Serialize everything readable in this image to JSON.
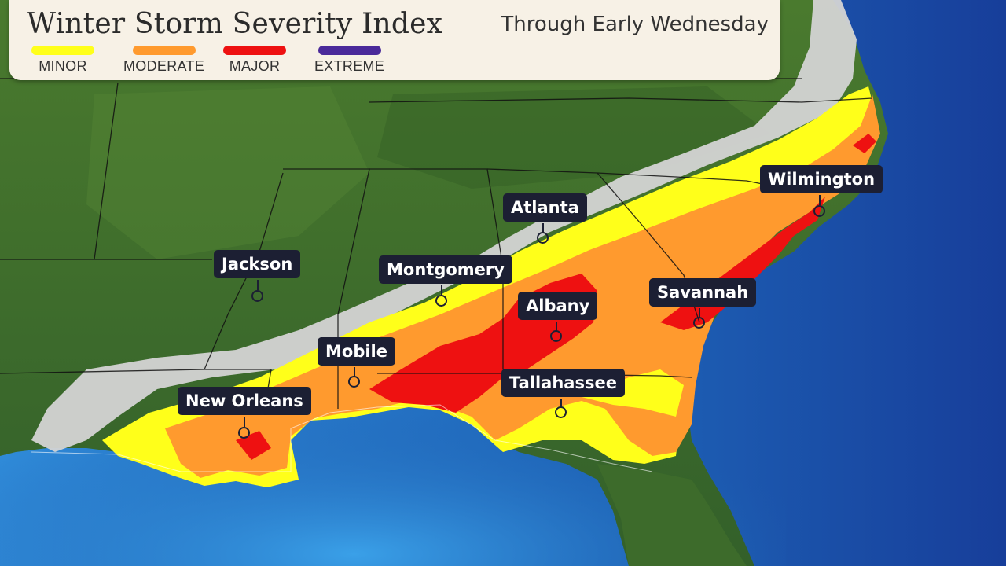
{
  "header": {
    "title": "Winter Storm Severity Index",
    "subtitle": "Through Early Wednesday"
  },
  "legend": [
    {
      "label": "MINOR",
      "color": "#ffff1a"
    },
    {
      "label": "MODERATE",
      "color": "#ff9a2e"
    },
    {
      "label": "MAJOR",
      "color": "#ee1111"
    },
    {
      "label": "EXTREME",
      "color": "#4a2a9a"
    }
  ],
  "colors": {
    "land": "#3f6e2a",
    "water": "#1f5fb0",
    "gulf": "#2a7fd0",
    "snow_gray": "#d4d4d4",
    "label_bg": "#1c1f33"
  },
  "cities": [
    {
      "name": "Atlanta"
    },
    {
      "name": "Jackson"
    },
    {
      "name": "Montgomery"
    },
    {
      "name": "Albany"
    },
    {
      "name": "Mobile"
    },
    {
      "name": "Tallahassee"
    },
    {
      "name": "Savannah"
    },
    {
      "name": "New Orleans"
    },
    {
      "name": "Wilmington"
    }
  ]
}
